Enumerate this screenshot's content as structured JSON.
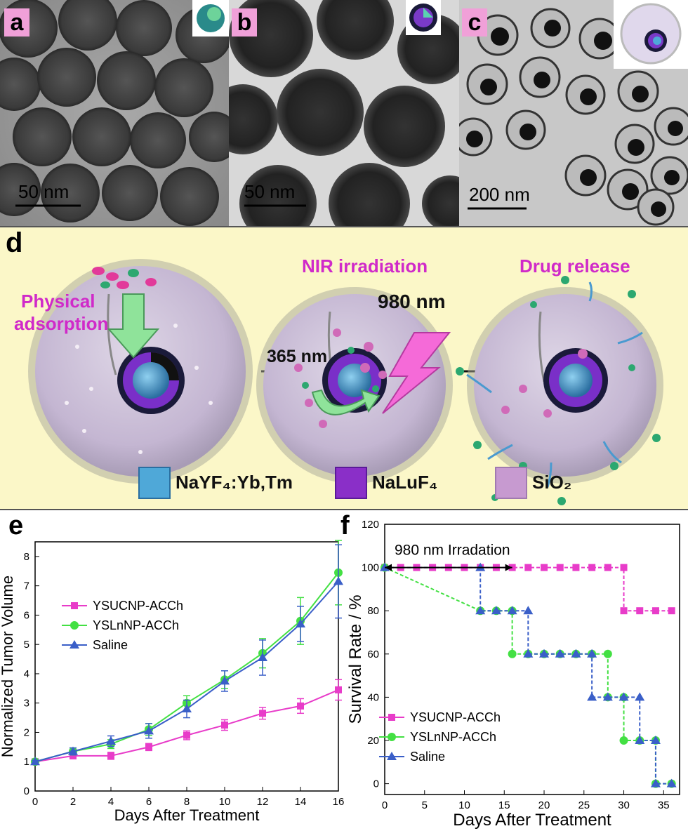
{
  "panels": {
    "a": {
      "label": "a",
      "scale": "50 nm"
    },
    "b": {
      "label": "b",
      "scale": "50 nm"
    },
    "c": {
      "label": "c",
      "scale": "200 nm"
    }
  },
  "schematic": {
    "label": "d",
    "stage1": {
      "line1": "Physical",
      "line2": "adsorption"
    },
    "stage2": {
      "title": "NIR irradiation",
      "wavelength_in": "980 nm",
      "wavelength_out": "365 nm"
    },
    "stage3": {
      "title": "Drug release"
    },
    "legend": [
      {
        "name": "NaYF₄:Yb,Tm",
        "color": "#4fa8d8"
      },
      {
        "name": "NaLuF₄",
        "color": "#8a2fc8"
      },
      {
        "name": "SiO₂",
        "color": "#c79ad0"
      }
    ],
    "colors": {
      "background": "#fbf7c8",
      "text_accent": "#d02ac9"
    }
  },
  "chart_data": [
    {
      "panel": "e",
      "type": "line",
      "xlabel": "Days After Treatment",
      "ylabel": "Normalized Tumor Volume",
      "xlim": [
        0,
        16
      ],
      "ylim": [
        0,
        8.5
      ],
      "xticks": [
        0,
        2,
        4,
        6,
        8,
        10,
        12,
        14,
        16
      ],
      "yticks": [
        0,
        1,
        2,
        3,
        4,
        5,
        6,
        7,
        8
      ],
      "legend_position": "top-left",
      "series": [
        {
          "name": "YSUCNP-ACCh",
          "color": "#e83cc9",
          "marker": "square",
          "x": [
            0,
            2,
            4,
            6,
            8,
            10,
            12,
            14,
            16
          ],
          "y": [
            1.0,
            1.2,
            1.2,
            1.5,
            1.9,
            2.25,
            2.65,
            2.9,
            3.45
          ],
          "err": [
            0.05,
            0.1,
            0.12,
            0.12,
            0.15,
            0.18,
            0.2,
            0.25,
            0.35
          ]
        },
        {
          "name": "YSLnNP-ACCh",
          "color": "#43e043",
          "marker": "circle",
          "x": [
            0,
            2,
            4,
            6,
            8,
            10,
            12,
            14,
            16
          ],
          "y": [
            1.0,
            1.35,
            1.6,
            2.1,
            3.0,
            3.8,
            4.7,
            5.8,
            7.45
          ],
          "err": [
            0.05,
            0.12,
            0.15,
            0.2,
            0.25,
            0.3,
            0.5,
            0.8,
            1.1
          ]
        },
        {
          "name": "Saline",
          "color": "#3a5fc8",
          "marker": "triangle",
          "x": [
            0,
            2,
            4,
            6,
            8,
            10,
            12,
            14,
            16
          ],
          "y": [
            1.0,
            1.35,
            1.7,
            2.05,
            2.8,
            3.75,
            4.55,
            5.7,
            7.15
          ],
          "err": [
            0.05,
            0.12,
            0.18,
            0.25,
            0.3,
            0.35,
            0.6,
            0.6,
            1.25
          ]
        }
      ]
    },
    {
      "panel": "f",
      "type": "line",
      "step": true,
      "xlabel": "Days After Treatment",
      "ylabel": "Survival Rate / %",
      "xlim": [
        0,
        37
      ],
      "ylim": [
        -5,
        120
      ],
      "xticks": [
        0,
        5,
        10,
        15,
        20,
        25,
        30,
        35
      ],
      "yticks": [
        0,
        20,
        40,
        60,
        80,
        100,
        120
      ],
      "legend_position": "bottom-left",
      "annotation": {
        "text": "980 nm Irradation",
        "x_start": 0,
        "x_end": 16,
        "y": 100
      },
      "series": [
        {
          "name": "YSUCNP-ACCh",
          "color": "#e83cc9",
          "marker": "square",
          "x": [
            0,
            2,
            4,
            6,
            8,
            10,
            12,
            14,
            16,
            18,
            20,
            22,
            24,
            26,
            28,
            30,
            30,
            32,
            34,
            36
          ],
          "y": [
            100,
            100,
            100,
            100,
            100,
            100,
            100,
            100,
            100,
            100,
            100,
            100,
            100,
            100,
            100,
            100,
            80,
            80,
            80,
            80
          ]
        },
        {
          "name": "YSLnNP-ACCh",
          "color": "#43e043",
          "marker": "circle",
          "x": [
            0,
            12,
            14,
            16,
            16,
            18,
            20,
            22,
            24,
            26,
            28,
            28,
            30,
            30,
            32,
            34,
            34,
            36
          ],
          "y": [
            100,
            80,
            80,
            80,
            60,
            60,
            60,
            60,
            60,
            60,
            60,
            40,
            40,
            20,
            20,
            20,
            0,
            0
          ]
        },
        {
          "name": "Saline",
          "color": "#3a5fc8",
          "marker": "triangle",
          "x": [
            0,
            12,
            12,
            14,
            16,
            18,
            18,
            20,
            22,
            24,
            26,
            26,
            28,
            30,
            32,
            32,
            34,
            34,
            36
          ],
          "y": [
            100,
            100,
            80,
            80,
            80,
            80,
            60,
            60,
            60,
            60,
            60,
            40,
            40,
            40,
            40,
            20,
            20,
            0,
            0
          ]
        }
      ]
    }
  ]
}
